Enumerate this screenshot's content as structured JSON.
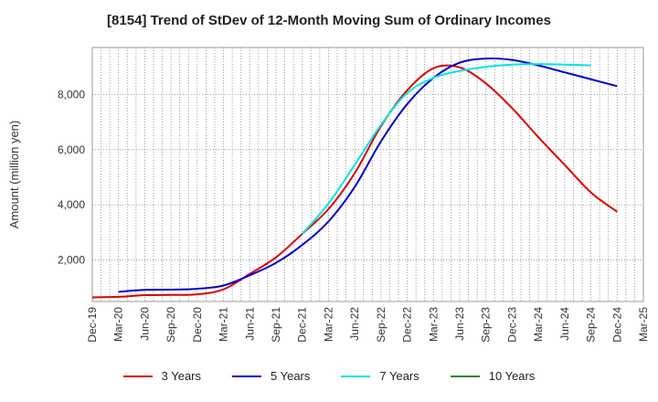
{
  "chart_data": {
    "type": "line",
    "title": "[8154]  Trend of StDev of 12-Month Moving Sum of Ordinary Incomes",
    "xlabel": "",
    "ylabel": "Amount (million yen)",
    "ylim": [
      500,
      9700
    ],
    "yticks": [
      2000,
      4000,
      6000,
      8000
    ],
    "ytick_labels": [
      "2,000",
      "4,000",
      "6,000",
      "8,000"
    ],
    "x_tick_labels": [
      "Dec-19",
      "Mar-20",
      "Jun-20",
      "Sep-20",
      "Dec-20",
      "Mar-21",
      "Jun-21",
      "Sep-21",
      "Dec-21",
      "Mar-22",
      "Jun-22",
      "Sep-22",
      "Dec-22",
      "Mar-23",
      "Jun-23",
      "Sep-23",
      "Dec-23",
      "Mar-24",
      "Jun-24",
      "Sep-24",
      "Dec-24",
      "Mar-25"
    ],
    "grid": true,
    "legend_position": "bottom",
    "series": [
      {
        "name": "3 Years",
        "color": "#dd0000",
        "start_index": 0,
        "values": [
          650,
          670,
          730,
          740,
          760,
          940,
          1500,
          2100,
          2950,
          3850,
          5150,
          6850,
          8150,
          8950,
          8980,
          8400,
          7500,
          6450,
          5450,
          4450,
          3750
        ]
      },
      {
        "name": "5 Years",
        "color": "#0000cc",
        "start_index": 1,
        "values": [
          850,
          920,
          930,
          960,
          1080,
          1450,
          1900,
          2550,
          3400,
          4650,
          6300,
          7650,
          8600,
          9150,
          9300,
          9250,
          9050,
          8800,
          8550,
          8300
        ]
      },
      {
        "name": "7 Years",
        "color": "#00e5e5",
        "start_index": 8,
        "values": [
          2950,
          4050,
          5450,
          6900,
          8050,
          8600,
          8850,
          9000,
          9080,
          9100,
          9080,
          9050
        ]
      },
      {
        "name": "10 Years",
        "color": "#228b22",
        "start_index": 0,
        "values": []
      }
    ]
  }
}
